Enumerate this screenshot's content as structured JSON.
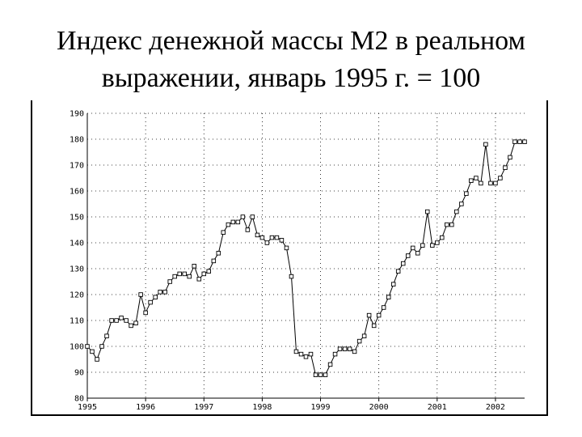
{
  "title": {
    "line1": "Индекс денежной массы М2 в реальном",
    "line2": "выражении, январь 1995 г. = 100"
  },
  "chart_data": {
    "type": "line",
    "title": "Индекс денежной массы М2 в реальном выражении, январь 1995 г. = 100",
    "xlabel": "",
    "ylabel": "",
    "x_ticks": [
      "1995",
      "1996",
      "1997",
      "1998",
      "1999",
      "2000",
      "2001",
      "2002"
    ],
    "y_ticks": [
      "80",
      "90",
      "100",
      "110",
      "120",
      "130",
      "140",
      "150",
      "160",
      "170",
      "180",
      "190"
    ],
    "ylim": [
      80,
      190
    ],
    "xlim": [
      1995.0,
      2002.5
    ],
    "grid": true,
    "marker": "open-square",
    "series": [
      {
        "x": [
          1995.0,
          1995.083,
          1995.167,
          1995.25,
          1995.333,
          1995.417,
          1995.5,
          1995.583,
          1995.667,
          1995.75,
          1995.833,
          1995.917,
          1996.0,
          1996.083,
          1996.167,
          1996.25,
          1996.333,
          1996.417,
          1996.5,
          1996.583,
          1996.667,
          1996.75,
          1996.833,
          1996.917,
          1997.0,
          1997.083,
          1997.167,
          1997.25,
          1997.333,
          1997.417,
          1997.5,
          1997.583,
          1997.667,
          1997.75,
          1997.833,
          1997.917,
          1998.0,
          1998.083,
          1998.167,
          1998.25,
          1998.333,
          1998.417,
          1998.5,
          1998.583,
          1998.667,
          1998.75,
          1998.833,
          1998.917,
          1999.0,
          1999.083,
          1999.167,
          1999.25,
          1999.333,
          1999.417,
          1999.5,
          1999.583,
          1999.667,
          1999.75,
          1999.833,
          1999.917,
          2000.0,
          2000.083,
          2000.167,
          2000.25,
          2000.333,
          2000.417,
          2000.5,
          2000.583,
          2000.667,
          2000.75,
          2000.833,
          2000.917,
          2001.0,
          2001.083,
          2001.167,
          2001.25,
          2001.333,
          2001.417,
          2001.5,
          2001.583,
          2001.667,
          2001.75,
          2001.833,
          2001.917,
          2002.0,
          2002.083,
          2002.167,
          2002.25,
          2002.333,
          2002.417,
          2002.5
        ],
        "values": [
          100,
          98,
          95,
          100,
          104,
          110,
          110,
          111,
          110,
          108,
          109,
          120,
          113,
          117,
          119,
          121,
          121,
          125,
          127,
          128,
          128,
          127,
          131,
          126,
          128,
          129,
          133,
          136,
          144,
          147,
          148,
          148,
          150,
          145,
          150,
          143,
          142,
          140,
          142,
          142,
          141,
          138,
          127,
          98,
          97,
          96,
          97,
          89,
          89,
          89,
          93,
          97,
          99,
          99,
          99,
          98,
          102,
          104,
          112,
          108,
          112,
          115,
          119,
          124,
          129,
          132,
          135,
          138,
          136,
          139,
          152,
          139,
          140,
          142,
          147,
          147,
          152,
          155,
          159,
          164,
          165,
          163,
          178,
          163,
          163,
          165,
          169,
          173,
          179,
          179,
          179
        ]
      }
    ]
  }
}
